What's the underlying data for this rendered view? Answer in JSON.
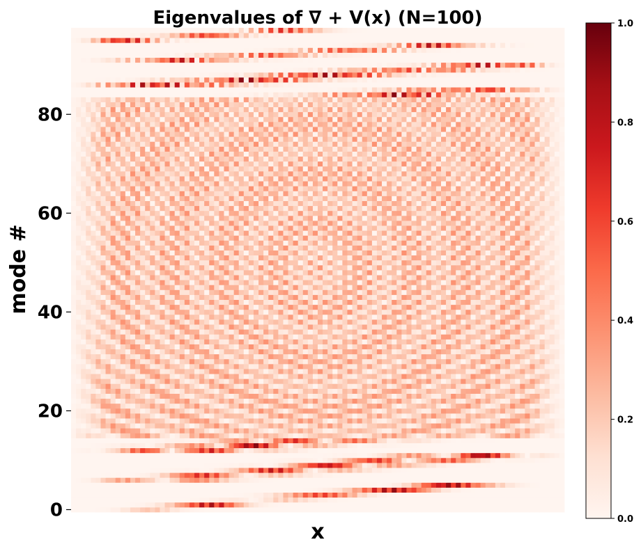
{
  "chart_data": {
    "type": "heatmap",
    "title": "Eigenvalues of ∇ + V(x) (N=100)",
    "xlabel": "x",
    "ylabel": "mode #",
    "x_ticks": [],
    "y_ticks": [
      0,
      20,
      40,
      60,
      80
    ],
    "ylim": [
      0,
      98
    ],
    "n_modes": 98,
    "n_x": 100,
    "value_range": [
      0.0,
      1.0
    ],
    "colormap": "Reds",
    "colorbar": {
      "position": "right",
      "ticks": [
        0.0,
        0.2,
        0.4,
        0.6,
        0.8,
        1.0
      ],
      "tick_labels": [
        "0.0",
        "0.2",
        "0.4",
        "0.6",
        "0.8",
        "1.0"
      ]
    },
    "grid": false,
    "values_description_in_data_units": "normalized |eigenvector| amplitude per (mode, x)"
  },
  "colors": {
    "low": "#fff5f0",
    "high": "#67000d"
  }
}
